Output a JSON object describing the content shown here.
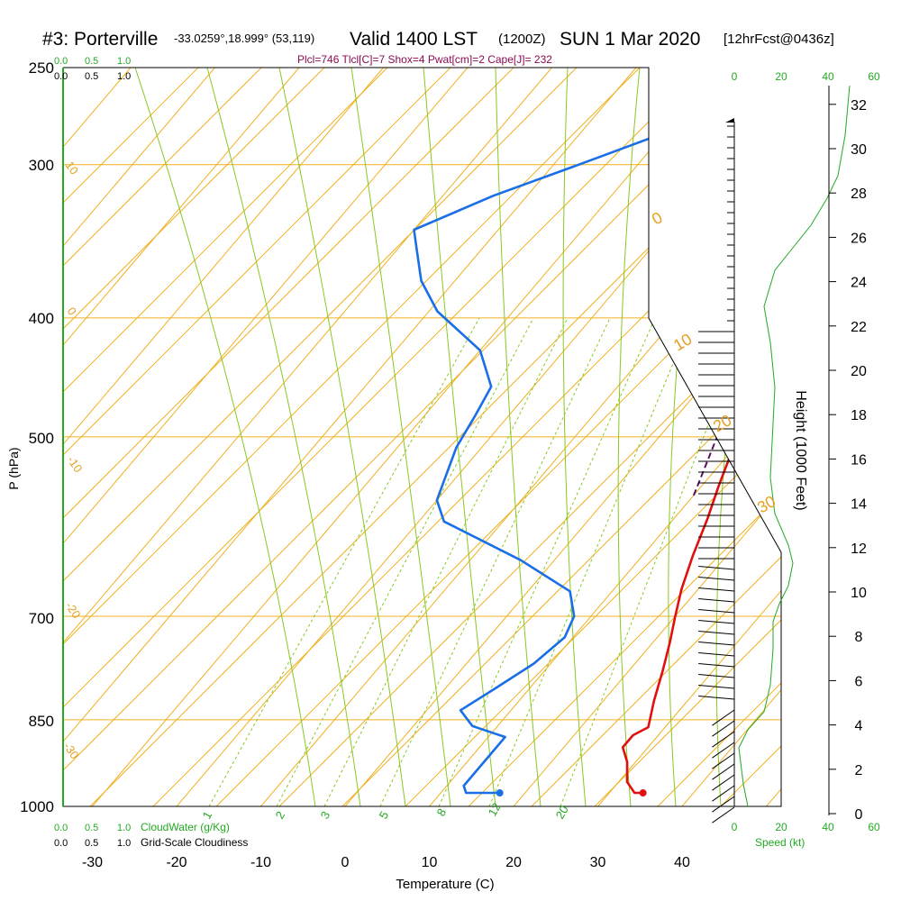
{
  "header": {
    "station": "#3: Porterville",
    "coords": "-33.0259°,18.999° (53,119)",
    "valid": "Valid 1400 LST",
    "zulu": "(1200Z)",
    "date": "SUN 1 Mar 2020",
    "forecast": "[12hrFcst@0436z]",
    "indices": "Plcl=746 Tlcl[C]=7 Shox=4 Pwat[cm]=2 Cape[J]= 232"
  },
  "labels": {
    "cloudwater": "CloudWater (g/Kg)",
    "cloudiness": "Grid-Scale Cloudiness",
    "speed": "Speed (kt)",
    "height": "Height (1000 Feet)"
  },
  "chart_data": {
    "type": "line",
    "title": "#3: Porterville  Valid 1400 LST (1200Z) SUN 1 Mar 2020",
    "xlabel": "Temperature (C)",
    "ylabel": "P (hPa)",
    "x_ticks": [
      "-30",
      "-20",
      "-10",
      "0",
      "10",
      "20",
      "30",
      "40"
    ],
    "y_ticks": [
      "250",
      "300",
      "400",
      "500",
      "700",
      "850",
      "1000"
    ],
    "top_scale_green": [
      "0.0",
      "0.5",
      "1.0"
    ],
    "top_scale_black": [
      "0.0",
      "0.5",
      "1.0"
    ],
    "bottom_scale_green": [
      "0.0",
      "0.5",
      "1.0"
    ],
    "bottom_scale_black": [
      "0.0",
      "0.5",
      "1.0"
    ],
    "speed_ticks": [
      "0",
      "20",
      "40",
      "60"
    ],
    "height_ticks": [
      "0",
      "2",
      "4",
      "6",
      "8",
      "10",
      "12",
      "14",
      "16",
      "18",
      "20",
      "22",
      "24",
      "26",
      "28",
      "30",
      "32"
    ],
    "mixing_ratio_labels": [
      "1",
      "2",
      "3",
      "5",
      "8",
      "12",
      "20"
    ],
    "isotherm_labels": [
      "10",
      "0",
      "-10",
      "-20",
      "-30",
      "0",
      "10",
      "20",
      "30"
    ],
    "series": [
      {
        "name": "Temperature",
        "color": "#e01010",
        "points": [
          [
            34,
            975
          ],
          [
            33,
            975
          ],
          [
            31,
            955
          ],
          [
            29,
            920
          ],
          [
            27,
            895
          ],
          [
            27,
            875
          ],
          [
            28,
            862
          ],
          [
            26,
            820
          ],
          [
            24,
            775
          ],
          [
            22,
            735
          ],
          [
            20,
            700
          ],
          [
            18,
            665
          ],
          [
            16,
            625
          ],
          [
            14,
            583
          ],
          [
            12,
            548
          ],
          [
            10,
            512
          ],
          [
            8,
            480
          ],
          [
            6,
            450
          ],
          [
            4,
            420
          ],
          [
            2,
            393
          ],
          [
            0,
            366
          ],
          [
            -1,
            348
          ],
          [
            -1,
            337
          ],
          [
            -1,
            322
          ],
          [
            -1,
            308
          ],
          [
            -2,
            294
          ],
          [
            -4,
            270
          ],
          [
            -6,
            255
          ]
        ]
      },
      {
        "name": "Dewpoint",
        "color": "#1a6ee6",
        "points": [
          [
            17,
            975
          ],
          [
            13,
            975
          ],
          [
            12,
            962
          ],
          [
            12,
            895
          ],
          [
            12,
            878
          ],
          [
            7,
            860
          ],
          [
            4,
            835
          ],
          [
            6,
            800
          ],
          [
            8,
            765
          ],
          [
            9,
            728
          ],
          [
            8,
            700
          ],
          [
            5,
            668
          ],
          [
            -4,
            630
          ],
          [
            -17,
            586
          ],
          [
            -20,
            563
          ],
          [
            -23,
            510
          ],
          [
            -24,
            480
          ],
          [
            -25,
            455
          ],
          [
            -30,
            425
          ],
          [
            -39,
            395
          ],
          [
            -44,
            373
          ],
          [
            -48,
            350
          ],
          [
            -50,
            339
          ],
          [
            -44,
            318
          ],
          [
            -37,
            300
          ],
          [
            -31,
            285
          ],
          [
            -28,
            268
          ],
          [
            -28,
            257
          ]
        ]
      },
      {
        "name": "Parcel",
        "color": "#5a1060",
        "points": [
          [
            10,
            558
          ],
          [
            8,
            520
          ],
          [
            6,
            485
          ],
          [
            4,
            455
          ],
          [
            1,
            426
          ],
          [
            -2,
            398
          ],
          [
            -5,
            372
          ],
          [
            -8,
            353
          ]
        ]
      }
    ],
    "surface_temperature": 34,
    "surface_dewpoint": 17,
    "legend_placement": "none",
    "grid": true
  }
}
